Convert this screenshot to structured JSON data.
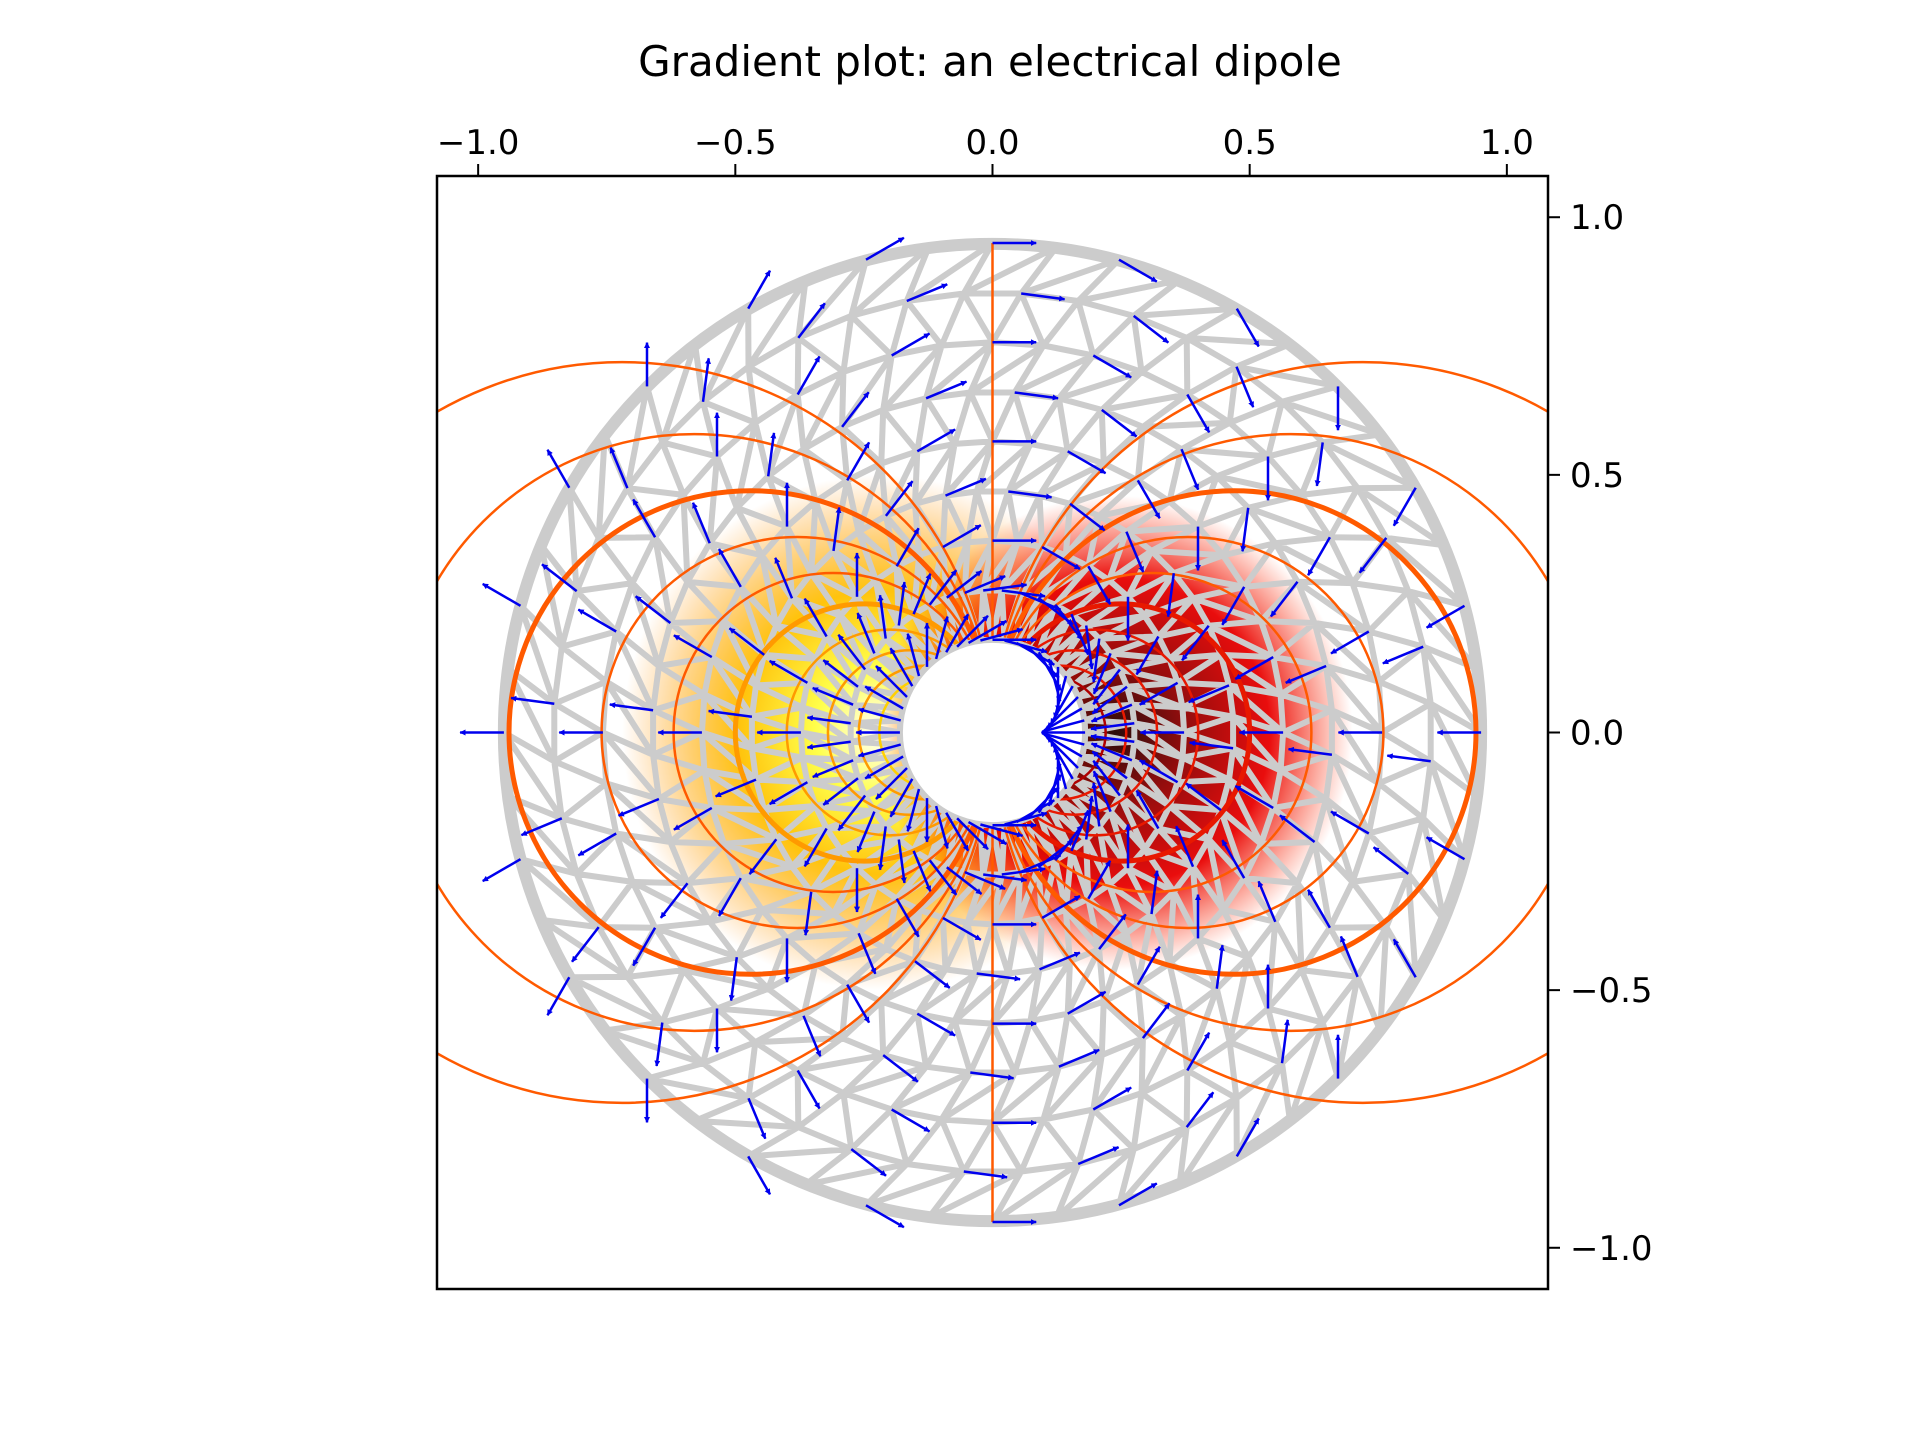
{
  "chart_data": {
    "type": "quiver",
    "title": "Gradient plot: an electrical dipole",
    "xlabel": "",
    "ylabel": "",
    "xlim": [
      -1.08,
      1.08
    ],
    "ylim": [
      -1.08,
      1.08
    ],
    "x_ticks": [
      -1.0,
      -0.5,
      0.0,
      0.5,
      1.0
    ],
    "x_tick_labels": [
      "−1.0",
      "−0.5",
      "0.0",
      "0.5",
      "1.0"
    ],
    "y_ticks": [
      1.0,
      0.5,
      0.0,
      -0.5,
      -1.0
    ],
    "y_tick_labels": [
      "1.0",
      "0.5",
      "0.0",
      "−0.5",
      "−1.0"
    ],
    "x_axis_position": "top",
    "y_axis_position": "right",
    "grid": false,
    "mesh": {
      "type": "triangulation",
      "inner_radius": 0.18,
      "outer_radius": 0.95,
      "color": "#cccccc"
    },
    "field": {
      "kind": "electrical dipole",
      "dipole_axis": "x",
      "colormap": "hot",
      "contour_color": "#ff5a00"
    },
    "arrow_color": "#0000ee"
  }
}
